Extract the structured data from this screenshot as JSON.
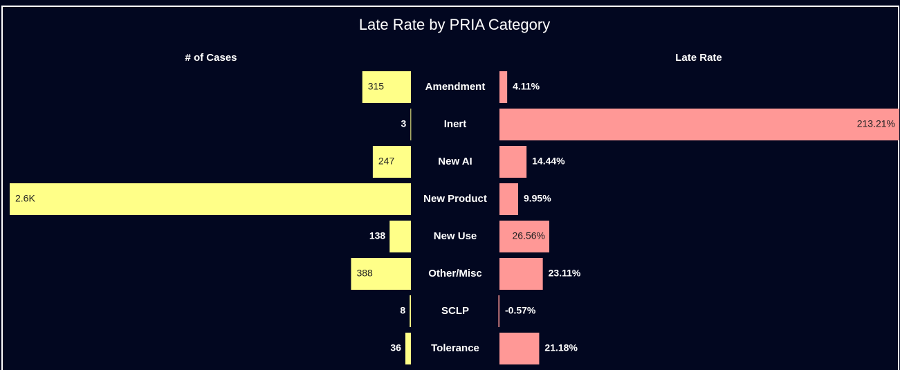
{
  "chart_data": {
    "type": "butterfly",
    "title": "Late Rate by PRIA Category",
    "categories": [
      "Amendment",
      "Inert",
      "New AI",
      "New Product",
      "New Use",
      "Other/Misc",
      "SCLP",
      "Tolerance"
    ],
    "series": [
      {
        "name": "# of Cases",
        "color": "#ffff88",
        "values": [
          315,
          3,
          247,
          2600,
          138,
          388,
          8,
          36
        ],
        "value_labels": [
          "315",
          "3",
          "247",
          "2.6K",
          "138",
          "388",
          "8",
          "36"
        ]
      },
      {
        "name": "Late Rate",
        "color": "#ff9896",
        "values": [
          4.11,
          213.21,
          14.44,
          9.95,
          26.56,
          23.11,
          -0.57,
          21.18
        ],
        "value_labels": [
          "4.11%",
          "213.21%",
          "14.44%",
          "9.95%",
          "26.56%",
          "23.11%",
          "-0.57%",
          "21.18%"
        ]
      }
    ]
  }
}
